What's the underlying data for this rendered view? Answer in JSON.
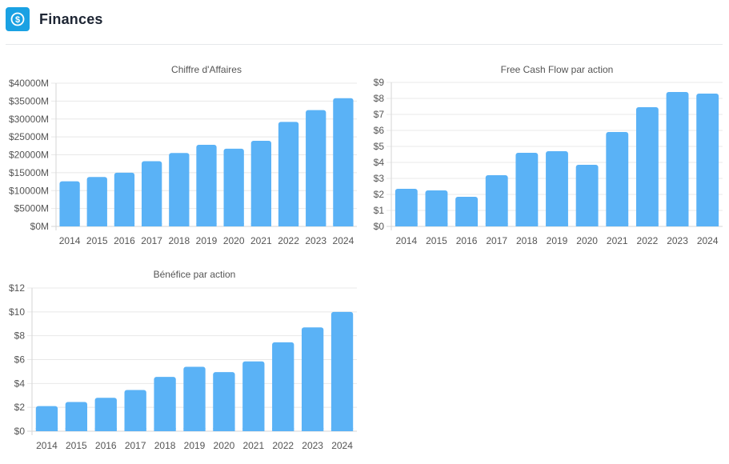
{
  "header": {
    "title": "Finances",
    "icon": "dollar-circle-icon",
    "accent": "#1aa1e3"
  },
  "bar_color": "#5ab2f6",
  "chart_data": [
    {
      "type": "bar",
      "title": "Chiffre d'Affaires",
      "categories": [
        "2014",
        "2015",
        "2016",
        "2017",
        "2018",
        "2019",
        "2020",
        "2021",
        "2022",
        "2023",
        "2024"
      ],
      "values": [
        12600,
        13800,
        15000,
        18200,
        20500,
        22800,
        21700,
        23900,
        29200,
        32500,
        35800
      ],
      "yticks": [
        "$0M",
        "$5000M",
        "$10000M",
        "$15000M",
        "$20000M",
        "$25000M",
        "$30000M",
        "$35000M",
        "$40000M"
      ],
      "ylim": [
        0,
        40000
      ],
      "grid": true
    },
    {
      "type": "bar",
      "title": "Free Cash Flow par action",
      "categories": [
        "2014",
        "2015",
        "2016",
        "2017",
        "2018",
        "2019",
        "2020",
        "2021",
        "2022",
        "2023",
        "2024"
      ],
      "values": [
        2.35,
        2.25,
        1.85,
        3.2,
        4.6,
        4.7,
        3.85,
        5.9,
        7.45,
        8.4,
        8.3
      ],
      "yticks": [
        "$0",
        "$1",
        "$2",
        "$3",
        "$4",
        "$5",
        "$6",
        "$7",
        "$8",
        "$9"
      ],
      "ylim": [
        0,
        9
      ],
      "grid": true
    },
    {
      "type": "bar",
      "title": "Bénéfice par action",
      "categories": [
        "2014",
        "2015",
        "2016",
        "2017",
        "2018",
        "2019",
        "2020",
        "2021",
        "2022",
        "2023",
        "2024"
      ],
      "values": [
        2.1,
        2.45,
        2.8,
        3.45,
        4.55,
        5.4,
        4.95,
        5.85,
        7.45,
        8.7,
        10.0
      ],
      "yticks": [
        "$0",
        "$2",
        "$4",
        "$6",
        "$8",
        "$10",
        "$12"
      ],
      "ylim": [
        0,
        12
      ],
      "grid": true
    }
  ]
}
